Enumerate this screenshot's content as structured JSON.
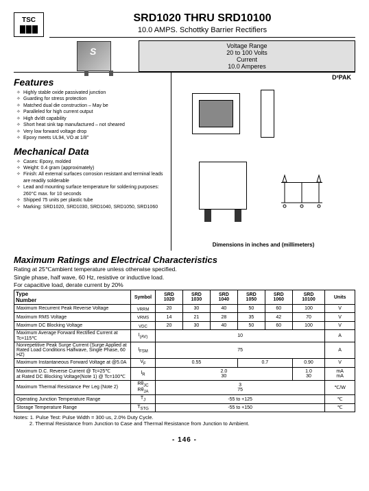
{
  "logo": "TSC",
  "title_prefix": "SRD1020",
  "title_mid": " THRU ",
  "title_suffix": "SRD10100",
  "subtitle": "10.0 AMPS. Schottky Barrier Rectifiers",
  "volt_box": {
    "l1": "Voltage Range",
    "l2": "20 to 100 Volts",
    "l3": "Current",
    "l4": "10.0 Amperes"
  },
  "package_label": "D²PAK",
  "dim_note": "Dimensions in inches and (millimeters)",
  "features_heading": "Features",
  "features": [
    "Highly stable oxide passivated junction",
    "Guarding for stress protection",
    "Matched dual die construction – May be",
    "Paralleled for high current output",
    "High dv/dt capability",
    "Short heat sink tap manufactured – not sheared",
    "Very low forward voltage drop",
    "Epoxy meets UL94, VO at 1/8\""
  ],
  "mech_heading": "Mechanical Data",
  "mech": [
    "Cases: Epoxy, molded",
    "Weight: 0.4 gram (approximately)",
    "Finish: All external surfaces corrosion resistant and terminal leads are readily solderable",
    "Lead and mounting surface temperature for soldering purposes: 260°C max. for 10 seconds",
    "Shipped 75 units per plastic tube",
    "Marking: SRD1020, SRD1030, SRD1040, SRD1050, SRD1060"
  ],
  "max_heading": "Maximum Ratings and Electrical Characteristics",
  "rating_l1": "Rating at 25℃ambient temperature unless otherwise specified.",
  "rating_l2": "Single phase, half wave, 60 Hz, resistive or inductive load.",
  "rating_l3": "For capacitive load, derate current by 20%",
  "table": {
    "header": [
      "Type Number",
      "Symbol",
      "SRD 1020",
      "SRD 1030",
      "SRD 1040",
      "SRD 1050",
      "SRD 1060",
      "SRD 10100",
      "Units"
    ]
  },
  "rows": [
    {
      "p": "Maximum Recurrent Peak Reverse Voltage",
      "s": "VRRM",
      "v": [
        "20",
        "30",
        "40",
        "50",
        "60",
        "100"
      ],
      "u": "V"
    },
    {
      "p": "Maximum RMS Voltage",
      "s": "VRMS",
      "v": [
        "14",
        "21",
        "28",
        "35",
        "42",
        "70"
      ],
      "u": "V"
    },
    {
      "p": "Maximum DC Blocking Voltage",
      "s": "VDC",
      "v": [
        "20",
        "30",
        "40",
        "50",
        "60",
        "100"
      ],
      "u": "V"
    }
  ],
  "r_iav": {
    "p": "Maximum Average Forward Rectified Current at Tc=115℃",
    "s": "I(AV)",
    "val": "10",
    "u": "A"
  },
  "r_ifsm": {
    "p": "Nonrepetitive Peak Surge Current (Surge Applied at Rated Load Conditions Halfwave, Single Phase, 60 HZ)",
    "s": "IFSM",
    "val": "75",
    "u": "A"
  },
  "r_vf": {
    "p": "Maximum Instantaneous Forward Voltage at @5.0A",
    "s": "VF",
    "v1": "0.55",
    "v2": "0.7",
    "v3": "0.90",
    "u": "V"
  },
  "r_ir": {
    "p": "Maximum D.C. Reverse Current        @ Tc=25℃\nat Rated DC Blocking Voltage(Note 1) @ Tc=100℃",
    "s": "IR",
    "t1": "2.0",
    "t2": "30",
    "r1": "1.0",
    "r2": "30",
    "u1": "mA",
    "u2": "mA"
  },
  "r_rth": {
    "p": "Maximum Thermal Resistance Per Leg (Note 2)",
    "s1": "RθJC",
    "s2": "RθJA",
    "v1": "3",
    "v2": "75",
    "u": "℃/W"
  },
  "r_tj": {
    "p": "Operating Junction Temperature Range",
    "s": "TJ",
    "val": "-55 to +125",
    "u": "℃"
  },
  "r_tstg": {
    "p": "Storage Temperature Range",
    "s": "TSTG",
    "val": "-55 to +150",
    "u": "℃"
  },
  "notes": "Notes: 1. Pulse Test: Pulse Width = 300 us, 2.0% Duty Cycle.\n           2. Thermal Resistance from Junction to Case and Thermal Resistance from Junction to Ambient.",
  "page": "-  146  -",
  "colors": {
    "grey": "#e0e0e0"
  }
}
